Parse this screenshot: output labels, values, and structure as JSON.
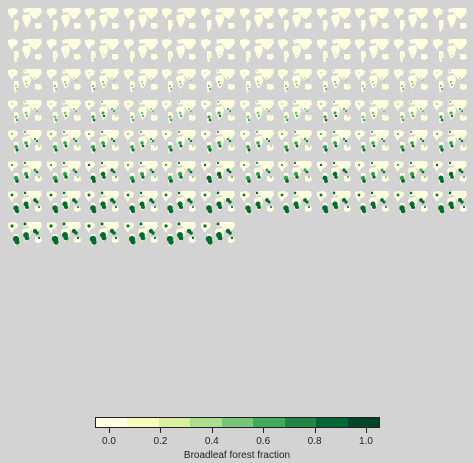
{
  "colorbar": {
    "title": "Broadleaf forest fraction",
    "tick_labels": [
      "0.0",
      "0.2",
      "0.4",
      "0.6",
      "0.8",
      "1.0"
    ],
    "tick_values": [
      0.0,
      0.2,
      0.4,
      0.6,
      0.8,
      1.0
    ],
    "colors": [
      "#ffffe5",
      "#f7fcb9",
      "#d9f0a3",
      "#addd8e",
      "#78c679",
      "#41ab5d",
      "#238443",
      "#006837",
      "#004529"
    ]
  },
  "panels": {
    "count": 90,
    "columns": 12,
    "rows": 8,
    "background": "#d3d3d3",
    "land_base_color": "#ffffe0",
    "forest_colors": [
      "#c7e9c0",
      "#74c476",
      "#31a354",
      "#006d2c"
    ]
  }
}
